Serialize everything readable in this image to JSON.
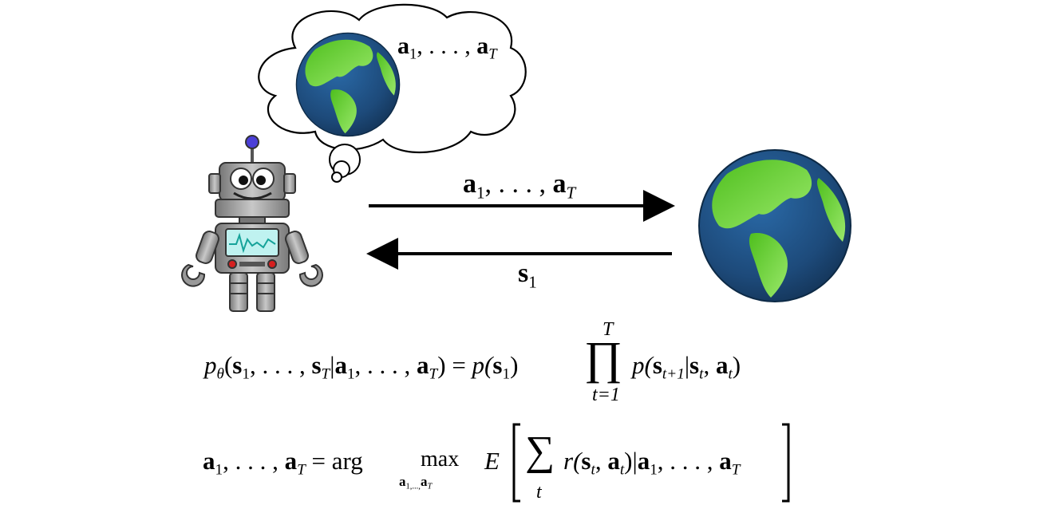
{
  "thought_label": {
    "a": "a",
    "sub1": "1",
    "dots": ", . . . , ",
    "a2": "a",
    "subT": "T"
  },
  "arrow_right_label": {
    "a": "a",
    "sub1": "1",
    "dots": ", . . . , ",
    "a2": "a",
    "subT": "T"
  },
  "arrow_left_label": {
    "s": "s",
    "sub1": "1"
  },
  "equation1": {
    "lhs": "p",
    "lhs_sub": "θ",
    "open": "(",
    "s": "s",
    "s1_sub": "1",
    "mid1": ", . . . , ",
    "sT": "s",
    "sT_sub": "T",
    "bar": "|",
    "a": "a",
    "a1_sub": "1",
    "mid2": ", . . . , ",
    "aT": "a",
    "aT_sub": "T",
    "close": ")",
    "eq": " = ",
    "p1": "p(",
    "ps": "s",
    "ps_sub": "1",
    "p1_close": ")",
    "prod": "∏",
    "prod_top": "T",
    "prod_bottom": "t=1",
    "p2": "p(",
    "p2s": "s",
    "p2s_sub": "t+1",
    "bar2": "|",
    "p2st": "s",
    "p2st_sub": "t",
    "comma": ", ",
    "p2at": "a",
    "p2at_sub": "t",
    "p2_close": ")"
  },
  "equation2": {
    "a": "a",
    "a1_sub": "1",
    "dots": ", . . . , ",
    "aT": "a",
    "aT_sub": "T",
    "eq": " = arg ",
    "max": "max",
    "max_sub_a": "a",
    "max_sub_1": "1,...,",
    "max_sub_aT": "a",
    "max_sub_T": "T",
    "E": "E",
    "sum": "∑",
    "sum_sub": "t",
    "r": "r(",
    "rs": "s",
    "rs_sub": "t",
    "rcomma": ", ",
    "ra": "a",
    "ra_sub": "t",
    "rclose": ")|",
    "ca": "a",
    "ca_sub1": "1",
    "cdots": ", . . . , ",
    "caT": "a",
    "caT_sub": "T"
  },
  "colors": {
    "ocean": "#1f4e79",
    "land": "#6fd23a",
    "robot_body": "#9a9a9a",
    "robot_dark": "#5a5a5a",
    "antenna": "#4b3fd8",
    "screen": "#bff2f0",
    "screen_wave": "#16a39a",
    "button_red": "#d61f1f"
  },
  "icons": [
    "thought-bubble-icon",
    "earth-globe-icon",
    "robot-icon",
    "arrow-right-icon",
    "arrow-left-icon"
  ]
}
